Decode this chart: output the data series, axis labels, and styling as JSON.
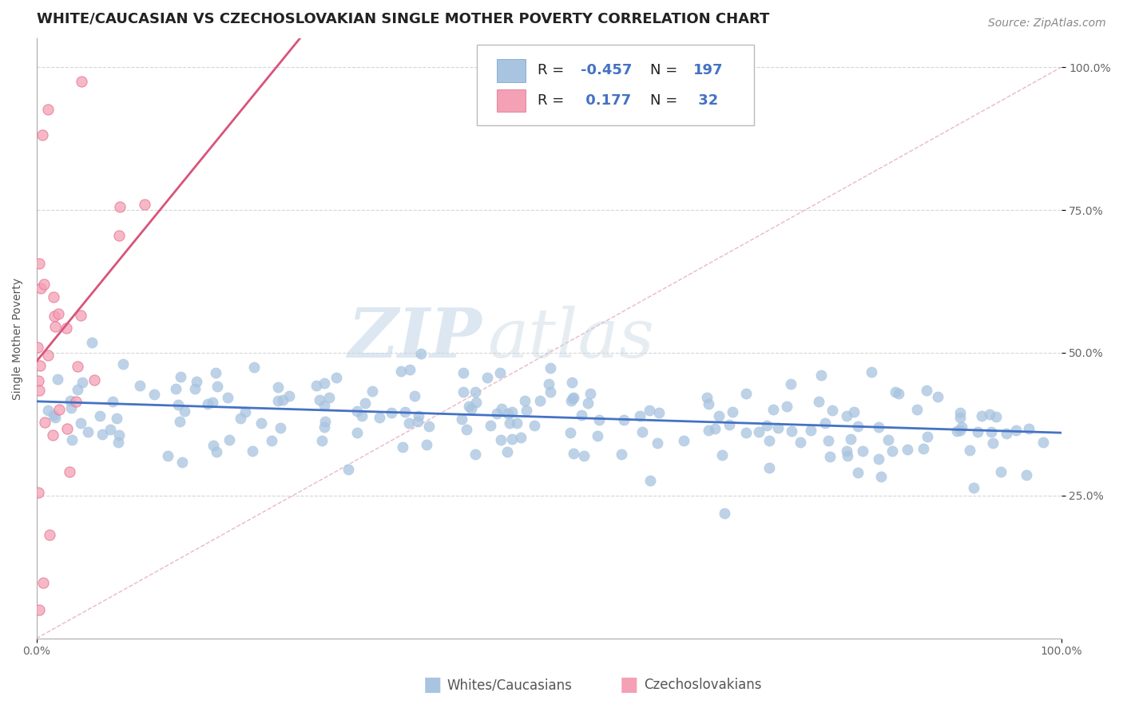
{
  "title": "WHITE/CAUCASIAN VS CZECHOSLOVAKIAN SINGLE MOTHER POVERTY CORRELATION CHART",
  "source_text": "Source: ZipAtlas.com",
  "ylabel": "Single Mother Poverty",
  "watermark_zip": "ZIP",
  "watermark_atlas": "atlas",
  "xlim": [
    0.0,
    1.0
  ],
  "ylim_low": 0.0,
  "ylim_high": 1.05,
  "x_tick_positions": [
    0.0,
    1.0
  ],
  "x_tick_labels": [
    "0.0%",
    "100.0%"
  ],
  "y_tick_positions": [
    0.25,
    0.5,
    0.75,
    1.0
  ],
  "y_tick_labels": [
    "25.0%",
    "50.0%",
    "75.0%",
    "100.0%"
  ],
  "blue_R": -0.457,
  "blue_N": 197,
  "pink_R": 0.177,
  "pink_N": 32,
  "blue_dot_color": "#a8c4e0",
  "pink_dot_color": "#f4a0b5",
  "blue_line_color": "#4472c4",
  "pink_line_color": "#d9547a",
  "ref_line_color": "#e8b0c0",
  "legend_label_blue": "Whites/Caucasians",
  "legend_label_pink": "Czechoslovakians",
  "blue_intercept": 0.415,
  "blue_slope": -0.055,
  "pink_intercept": 0.485,
  "pink_slope": 2.2,
  "background_color": "#ffffff",
  "grid_color": "#cccccc",
  "title_color": "#222222",
  "stat_color": "#4472c4",
  "title_fontsize": 13,
  "axis_label_fontsize": 10,
  "tick_fontsize": 10,
  "legend_fontsize": 13,
  "source_fontsize": 10,
  "watermark_color": "#c5d8ea",
  "seed": 7
}
